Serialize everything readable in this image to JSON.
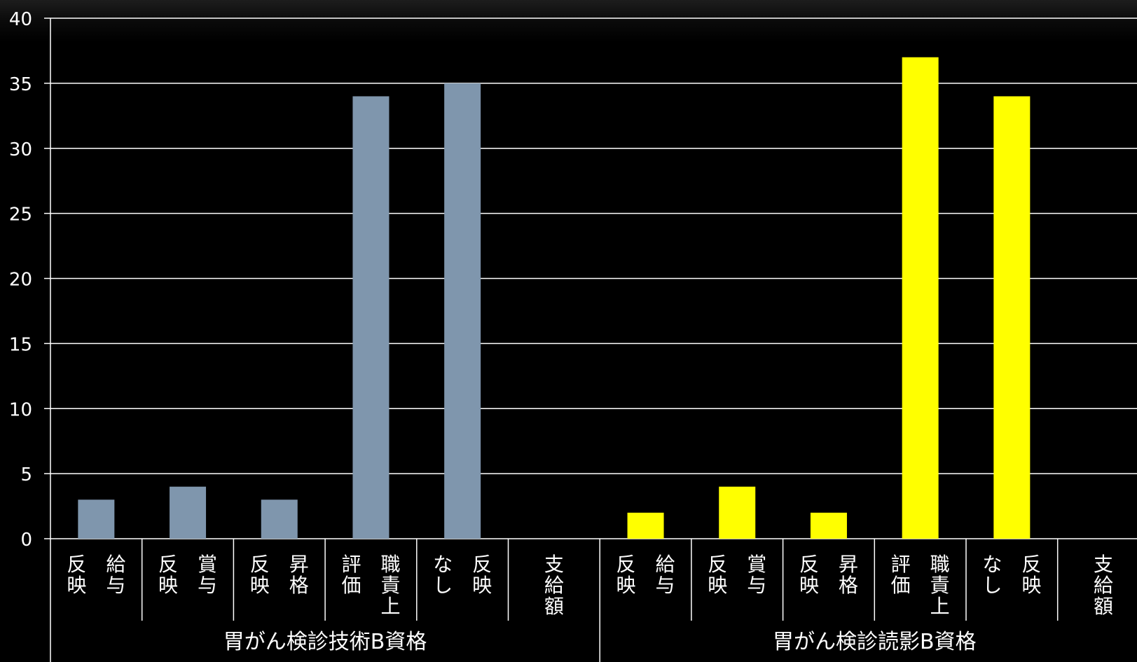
{
  "chart_data": {
    "type": "bar",
    "ylim": [
      0,
      40
    ],
    "yticks": [
      0,
      5,
      10,
      15,
      20,
      25,
      30,
      35,
      40
    ],
    "grid": true,
    "legend": "none",
    "title": "",
    "xlabel": "",
    "ylabel": "",
    "groups": [
      {
        "label": "胃がん検診技術B資格",
        "color": "#7f96ad",
        "categories": [
          {
            "lines": [
              "給与",
              "反映"
            ],
            "value": 3
          },
          {
            "lines": [
              "賞与",
              "反映"
            ],
            "value": 4
          },
          {
            "lines": [
              "昇格",
              "反映"
            ],
            "value": 3
          },
          {
            "lines": [
              "職責上",
              "評価"
            ],
            "value": 34
          },
          {
            "lines": [
              "反映",
              "なし"
            ],
            "value": 35
          },
          {
            "lines": [
              "支給額"
            ],
            "value": 0
          }
        ]
      },
      {
        "label": "胃がん検診読影B資格",
        "color": "#ffff00",
        "categories": [
          {
            "lines": [
              "給与",
              "反映"
            ],
            "value": 2
          },
          {
            "lines": [
              "賞与",
              "反映"
            ],
            "value": 4
          },
          {
            "lines": [
              "昇格",
              "反映"
            ],
            "value": 2
          },
          {
            "lines": [
              "職責上",
              "評価"
            ],
            "value": 37
          },
          {
            "lines": [
              "反映",
              "なし"
            ],
            "value": 34
          },
          {
            "lines": [
              "支給額"
            ],
            "value": 0
          }
        ]
      }
    ]
  }
}
